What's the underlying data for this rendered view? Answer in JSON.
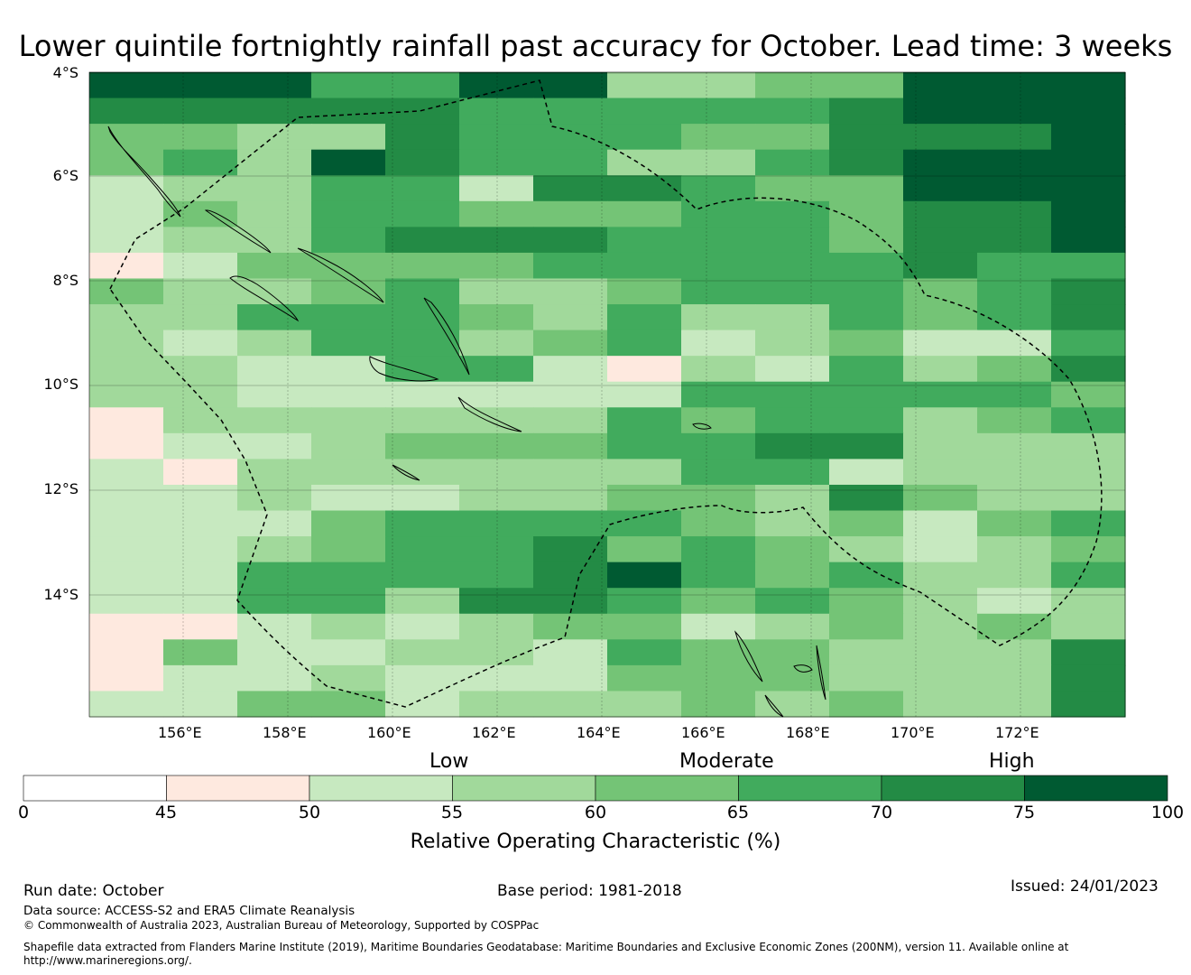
{
  "title": "Lower quintile fortnightly rainfall past accuracy for October. Lead time: 3 weeks",
  "map": {
    "lat_labels": [
      "4°S",
      "6°S",
      "8°S",
      "10°S",
      "12°S",
      "14°S"
    ],
    "lon_labels": [
      "156°E",
      "158°E",
      "160°E",
      "162°E",
      "164°E",
      "166°E",
      "168°E",
      "170°E",
      "172°E"
    ],
    "grid_bins": [
      "77755773344777",
      "66666555556777",
      "44336555446667",
      "45376553356777",
      "23355266544777",
      "24355444554667",
      "23356665554667",
      "12444455555655",
      "43345334555456",
      "33555435335456",
      "32355345234225",
      "33225521325346",
      "33222222555554",
      "13333335455345",
      "12234445566333",
      "21333333552333",
      "22322334436433",
      "22245555434245",
      "22345564543234",
      "22555567545335",
      "22553665454323",
      "11232344234343",
      "14223325443336",
      "12232224443336",
      "22442333434336"
    ]
  },
  "colorbar": {
    "bins": [
      {
        "min": 0,
        "max": 45,
        "color": "#ffffff"
      },
      {
        "min": 45,
        "max": 50,
        "color": "#fee9df"
      },
      {
        "min": 50,
        "max": 55,
        "color": "#c7e9c0"
      },
      {
        "min": 55,
        "max": 60,
        "color": "#a1d99b"
      },
      {
        "min": 60,
        "max": 65,
        "color": "#74c476"
      },
      {
        "min": 65,
        "max": 70,
        "color": "#41ab5d"
      },
      {
        "min": 70,
        "max": 75,
        "color": "#238b45"
      },
      {
        "min": 75,
        "max": 100,
        "color": "#005a32"
      }
    ],
    "category_labels": {
      "low": "Low",
      "moderate": "Moderate",
      "high": "High"
    },
    "ticks": [
      "0",
      "45",
      "50",
      "55",
      "60",
      "65",
      "70",
      "75",
      "100"
    ],
    "title": "Relative Operating Characteristic (%)"
  },
  "footer": {
    "run_date": "Run date: October",
    "base_period": "Base period: 1981-2018",
    "issued": "Issued: 24/01/2023",
    "data_source": "Data source: ACCESS-S2 and ERA5 Climate Reanalysis",
    "copyright": "© Commonwealth of Australia 2023, Australian Bureau of Meteorology, Supported by COSPPac",
    "shapefile_line1": "Shapefile data extracted from Flanders Marine Institute (2019), Maritime Boundaries Geodatabase: Maritime Boundaries and Exclusive Economic Zones (200NM), version 11. Available online at",
    "shapefile_line2": "http://www.marineregions.org/."
  }
}
